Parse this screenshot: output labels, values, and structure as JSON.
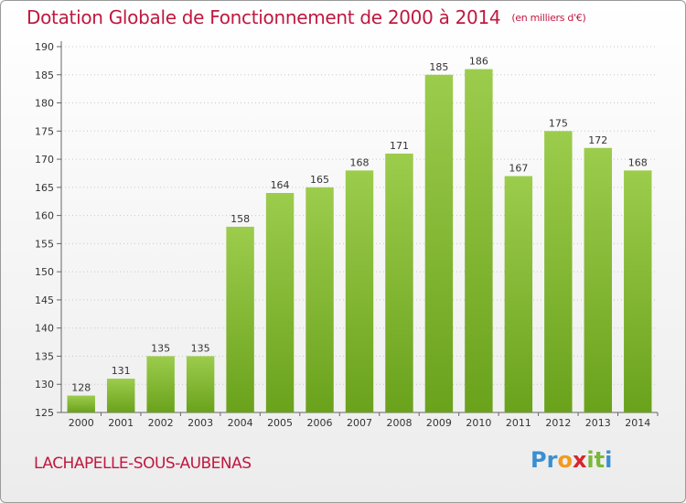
{
  "title": "Dotation Globale de Fonctionnement de 2000 à 2014",
  "subtitle": "(en milliers d'€)",
  "commune": "LACHAPELLE-SOUS-AUBENAS",
  "logo": {
    "letters": [
      {
        "char": "P",
        "color": "#3b8fd0"
      },
      {
        "char": "r",
        "color": "#3b8fd0"
      },
      {
        "char": "o",
        "color": "#f39a1e"
      },
      {
        "char": "x",
        "color": "#d6262d"
      },
      {
        "char": "i",
        "color": "#7ab83a"
      },
      {
        "char": "t",
        "color": "#7ab83a"
      },
      {
        "char": "i",
        "color": "#3b8fd0"
      }
    ]
  },
  "colors": {
    "title": "#c0183f",
    "bar_top": "#9ccc4c",
    "bar_bottom": "#6aa21c",
    "grid": "#c8c8c8"
  },
  "chart_data": {
    "type": "bar",
    "title": "Dotation Globale de Fonctionnement de 2000 à 2014",
    "subtitle": "(en milliers d'€)",
    "categories": [
      "2000",
      "2001",
      "2002",
      "2003",
      "2004",
      "2005",
      "2006",
      "2007",
      "2008",
      "2009",
      "2010",
      "2011",
      "2012",
      "2013",
      "2014"
    ],
    "values": [
      128,
      131,
      135,
      135,
      158,
      164,
      165,
      168,
      171,
      185,
      186,
      167,
      175,
      172,
      168
    ],
    "ylim": [
      125,
      190
    ],
    "yticks": [
      125,
      130,
      135,
      140,
      145,
      150,
      155,
      160,
      165,
      170,
      175,
      180,
      185,
      190
    ],
    "grid": true,
    "data_labels": true
  }
}
